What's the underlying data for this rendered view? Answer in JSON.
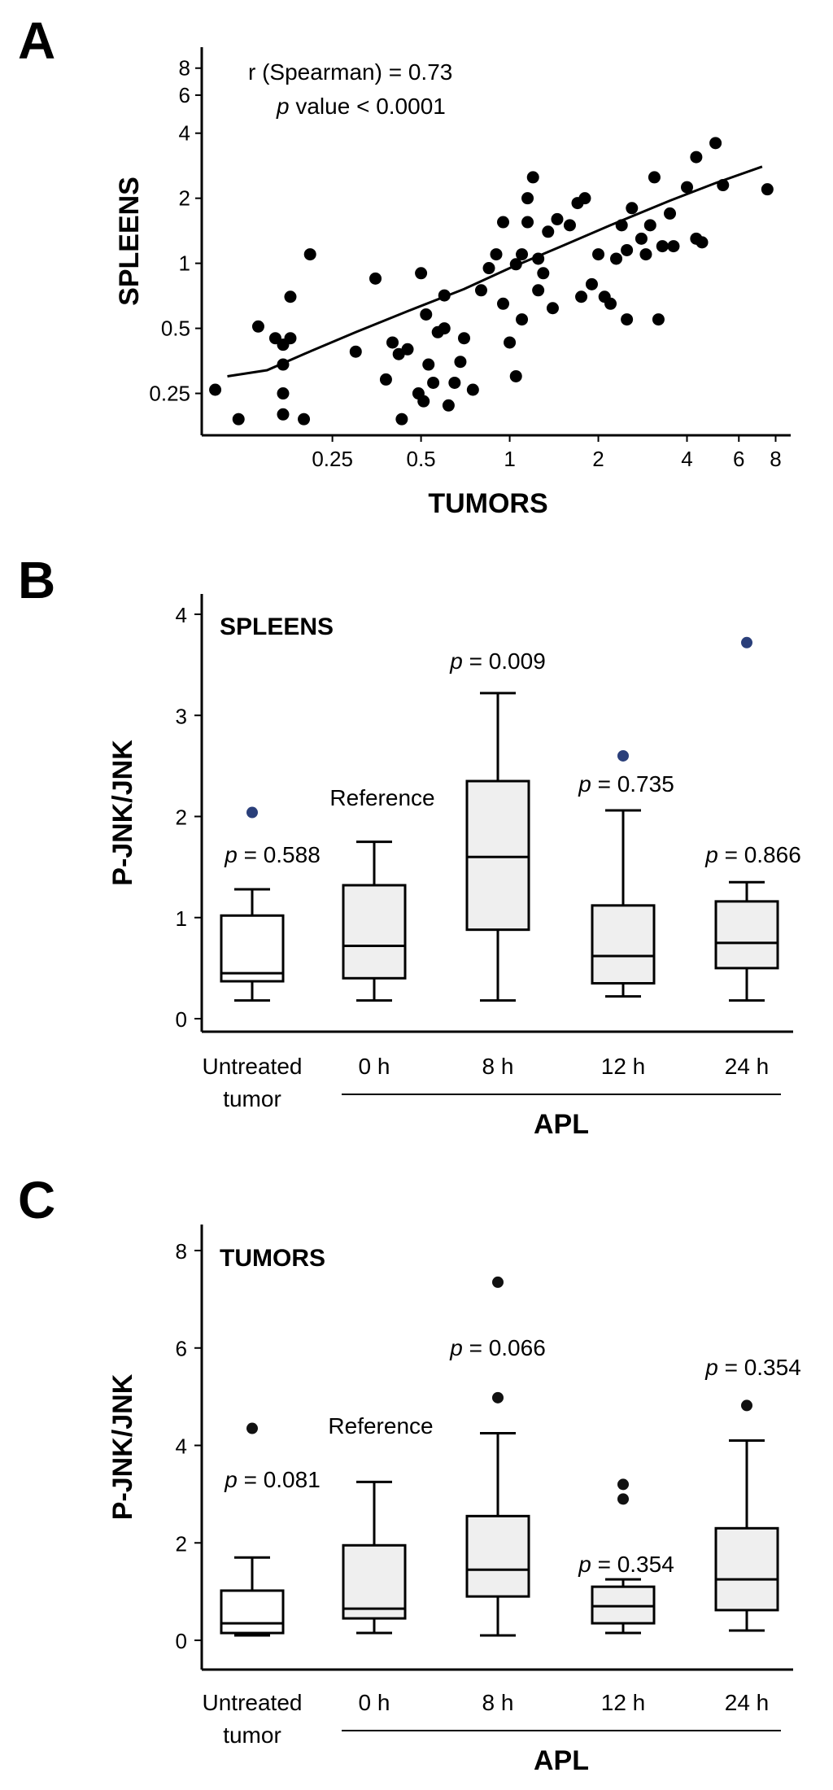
{
  "panels": {
    "a": {
      "letter": "A"
    },
    "b": {
      "letter": "B"
    },
    "c": {
      "letter": "C"
    }
  },
  "chart_data": [
    {
      "panel": "A",
      "type": "scatter",
      "xlabel": "TUMORS",
      "ylabel": "SPLEENS",
      "xscale": "log",
      "yscale": "log",
      "xlim": [
        0.09,
        9
      ],
      "ylim": [
        0.16,
        10
      ],
      "xticks": [
        0.25,
        0.5,
        1,
        2,
        4,
        6,
        8
      ],
      "xtick_labels": [
        "0.25",
        "0.5",
        "1",
        "2",
        "4",
        "6",
        "8"
      ],
      "yticks": [
        0.25,
        0.5,
        1,
        2,
        4,
        6,
        8
      ],
      "ytick_labels": [
        "0.25",
        "0.5",
        "1",
        "2",
        "4",
        "6",
        "8"
      ],
      "annotation_line1": "r (Spearman) = 0.73",
      "annotation_p_symbol": "p",
      "annotation_line2_rest": " value < 0.0001",
      "points": [
        [
          0.1,
          0.26
        ],
        [
          0.12,
          0.19
        ],
        [
          0.14,
          0.51
        ],
        [
          0.16,
          0.45
        ],
        [
          0.17,
          0.42
        ],
        [
          0.17,
          0.34
        ],
        [
          0.17,
          0.25
        ],
        [
          0.17,
          0.2
        ],
        [
          0.18,
          0.7
        ],
        [
          0.18,
          0.45
        ],
        [
          0.2,
          0.19
        ],
        [
          0.21,
          1.1
        ],
        [
          0.3,
          0.39
        ],
        [
          0.35,
          0.85
        ],
        [
          0.38,
          0.29
        ],
        [
          0.4,
          0.43
        ],
        [
          0.42,
          0.38
        ],
        [
          0.45,
          0.4
        ],
        [
          0.43,
          0.19
        ],
        [
          0.49,
          0.25
        ],
        [
          0.51,
          0.23
        ],
        [
          0.52,
          0.58
        ],
        [
          0.53,
          0.34
        ],
        [
          0.5,
          0.9
        ],
        [
          0.55,
          0.28
        ],
        [
          0.57,
          0.48
        ],
        [
          0.6,
          0.71
        ],
        [
          0.6,
          0.5
        ],
        [
          0.62,
          0.22
        ],
        [
          0.65,
          0.28
        ],
        [
          0.68,
          0.35
        ],
        [
          0.7,
          0.45
        ],
        [
          0.75,
          0.26
        ],
        [
          0.8,
          0.75
        ],
        [
          0.85,
          0.95
        ],
        [
          0.9,
          1.1
        ],
        [
          0.95,
          1.55
        ],
        [
          0.95,
          0.65
        ],
        [
          1.0,
          0.43
        ],
        [
          1.05,
          0.99
        ],
        [
          1.05,
          0.3
        ],
        [
          1.1,
          1.1
        ],
        [
          1.1,
          0.55
        ],
        [
          1.15,
          1.55
        ],
        [
          1.15,
          2.0
        ],
        [
          1.2,
          2.5
        ],
        [
          1.25,
          1.05
        ],
        [
          1.25,
          0.75
        ],
        [
          1.3,
          0.9
        ],
        [
          1.35,
          1.4
        ],
        [
          1.4,
          0.62
        ],
        [
          1.45,
          1.6
        ],
        [
          1.6,
          1.5
        ],
        [
          1.7,
          1.9
        ],
        [
          1.75,
          0.7
        ],
        [
          1.8,
          2.0
        ],
        [
          1.9,
          0.8
        ],
        [
          2.0,
          1.1
        ],
        [
          2.1,
          0.7
        ],
        [
          2.2,
          0.65
        ],
        [
          2.3,
          1.05
        ],
        [
          2.4,
          1.5
        ],
        [
          2.5,
          1.15
        ],
        [
          2.5,
          0.55
        ],
        [
          2.6,
          1.8
        ],
        [
          2.8,
          1.3
        ],
        [
          2.9,
          1.1
        ],
        [
          3.0,
          1.5
        ],
        [
          3.1,
          2.5
        ],
        [
          3.2,
          0.55
        ],
        [
          3.3,
          1.2
        ],
        [
          3.5,
          1.7
        ],
        [
          3.6,
          1.2
        ],
        [
          4.0,
          2.25
        ],
        [
          4.3,
          3.1
        ],
        [
          4.3,
          1.3
        ],
        [
          4.5,
          1.25
        ],
        [
          5.0,
          3.6
        ],
        [
          5.3,
          2.3
        ],
        [
          7.5,
          2.2
        ]
      ],
      "trend_line": [
        [
          0.11,
          0.3
        ],
        [
          0.15,
          0.32
        ],
        [
          0.2,
          0.38
        ],
        [
          0.3,
          0.48
        ],
        [
          0.45,
          0.6
        ],
        [
          0.7,
          0.76
        ],
        [
          1.0,
          0.95
        ],
        [
          1.5,
          1.2
        ],
        [
          2.2,
          1.5
        ],
        [
          3.5,
          1.95
        ],
        [
          5.0,
          2.35
        ],
        [
          7.2,
          2.8
        ]
      ]
    },
    {
      "panel": "B",
      "type": "box",
      "inset_title": "SPLEENS",
      "ylabel": "P-JNK/JNK",
      "ylim": [
        0,
        4
      ],
      "yticks": [
        0,
        1,
        2,
        3,
        4
      ],
      "ytick_labels": [
        "0",
        "1",
        "2",
        "3",
        "4"
      ],
      "group_label": "APL",
      "series": [
        {
          "label_line1": "Untreated",
          "label_line2": "tumor",
          "min": 0.18,
          "q1": 0.37,
          "median": 0.45,
          "q3": 1.02,
          "max": 1.28,
          "outliers": [
            2.04
          ],
          "fill": "#ffffff",
          "p_symbol": "p",
          "p_rest": " = 0.588"
        },
        {
          "label_line1": "0 h",
          "label_line2": "",
          "min": 0.18,
          "q1": 0.4,
          "median": 0.72,
          "q3": 1.32,
          "max": 1.75,
          "outliers": [],
          "fill": "#efefef",
          "note": "Reference"
        },
        {
          "label_line1": "8 h",
          "label_line2": "",
          "min": 0.18,
          "q1": 0.88,
          "median": 1.6,
          "q3": 2.35,
          "max": 3.22,
          "outliers": [],
          "fill": "#efefef",
          "p_symbol": "p",
          "p_rest": " = 0.009"
        },
        {
          "label_line1": "12 h",
          "label_line2": "",
          "min": 0.22,
          "q1": 0.35,
          "median": 0.62,
          "q3": 1.12,
          "max": 2.06,
          "outliers": [
            2.6
          ],
          "fill": "#efefef",
          "p_symbol": "p",
          "p_rest": " = 0.735"
        },
        {
          "label_line1": "24 h",
          "label_line2": "",
          "min": 0.18,
          "q1": 0.5,
          "median": 0.75,
          "q3": 1.16,
          "max": 1.35,
          "outliers": [
            3.72
          ],
          "fill": "#efefef",
          "p_symbol": "p",
          "p_rest": " = 0.866"
        }
      ],
      "outlier_color": "#2a3f7a"
    },
    {
      "panel": "C",
      "type": "box",
      "inset_title": "TUMORS",
      "ylabel": "P-JNK/JNK",
      "ylim": [
        -0.3,
        8.2
      ],
      "yticks": [
        0,
        2,
        4,
        6,
        8
      ],
      "ytick_labels": [
        "0",
        "2",
        "4",
        "6",
        "8"
      ],
      "group_label": "APL",
      "series": [
        {
          "label_line1": "Untreated",
          "label_line2": "tumor",
          "min": 0.1,
          "q1": 0.15,
          "median": 0.35,
          "q3": 1.02,
          "max": 1.7,
          "outliers": [
            4.35
          ],
          "fill": "#ffffff",
          "p_symbol": "p",
          "p_rest": " = 0.081"
        },
        {
          "label_line1": "0 h",
          "label_line2": "",
          "min": 0.15,
          "q1": 0.45,
          "median": 0.65,
          "q3": 1.95,
          "max": 3.25,
          "outliers": [],
          "fill": "#efefef",
          "note": "Reference"
        },
        {
          "label_line1": "8 h",
          "label_line2": "",
          "min": 0.1,
          "q1": 0.9,
          "median": 1.45,
          "q3": 2.55,
          "max": 4.25,
          "outliers": [
            4.98,
            7.35
          ],
          "fill": "#efefef",
          "p_symbol": "p",
          "p_rest": " = 0.066"
        },
        {
          "label_line1": "12 h",
          "label_line2": "",
          "min": 0.15,
          "q1": 0.35,
          "median": 0.7,
          "q3": 1.1,
          "max": 1.25,
          "outliers": [
            2.9,
            3.2
          ],
          "fill": "#efefef",
          "p_symbol": "p",
          "p_rest": " = 0.354"
        },
        {
          "label_line1": "24 h",
          "label_line2": "",
          "min": 0.2,
          "q1": 0.62,
          "median": 1.25,
          "q3": 2.3,
          "max": 4.1,
          "outliers": [
            4.82
          ],
          "fill": "#efefef",
          "p_symbol": "p",
          "p_rest": " = 0.354"
        }
      ],
      "outlier_color": "#111111"
    }
  ]
}
